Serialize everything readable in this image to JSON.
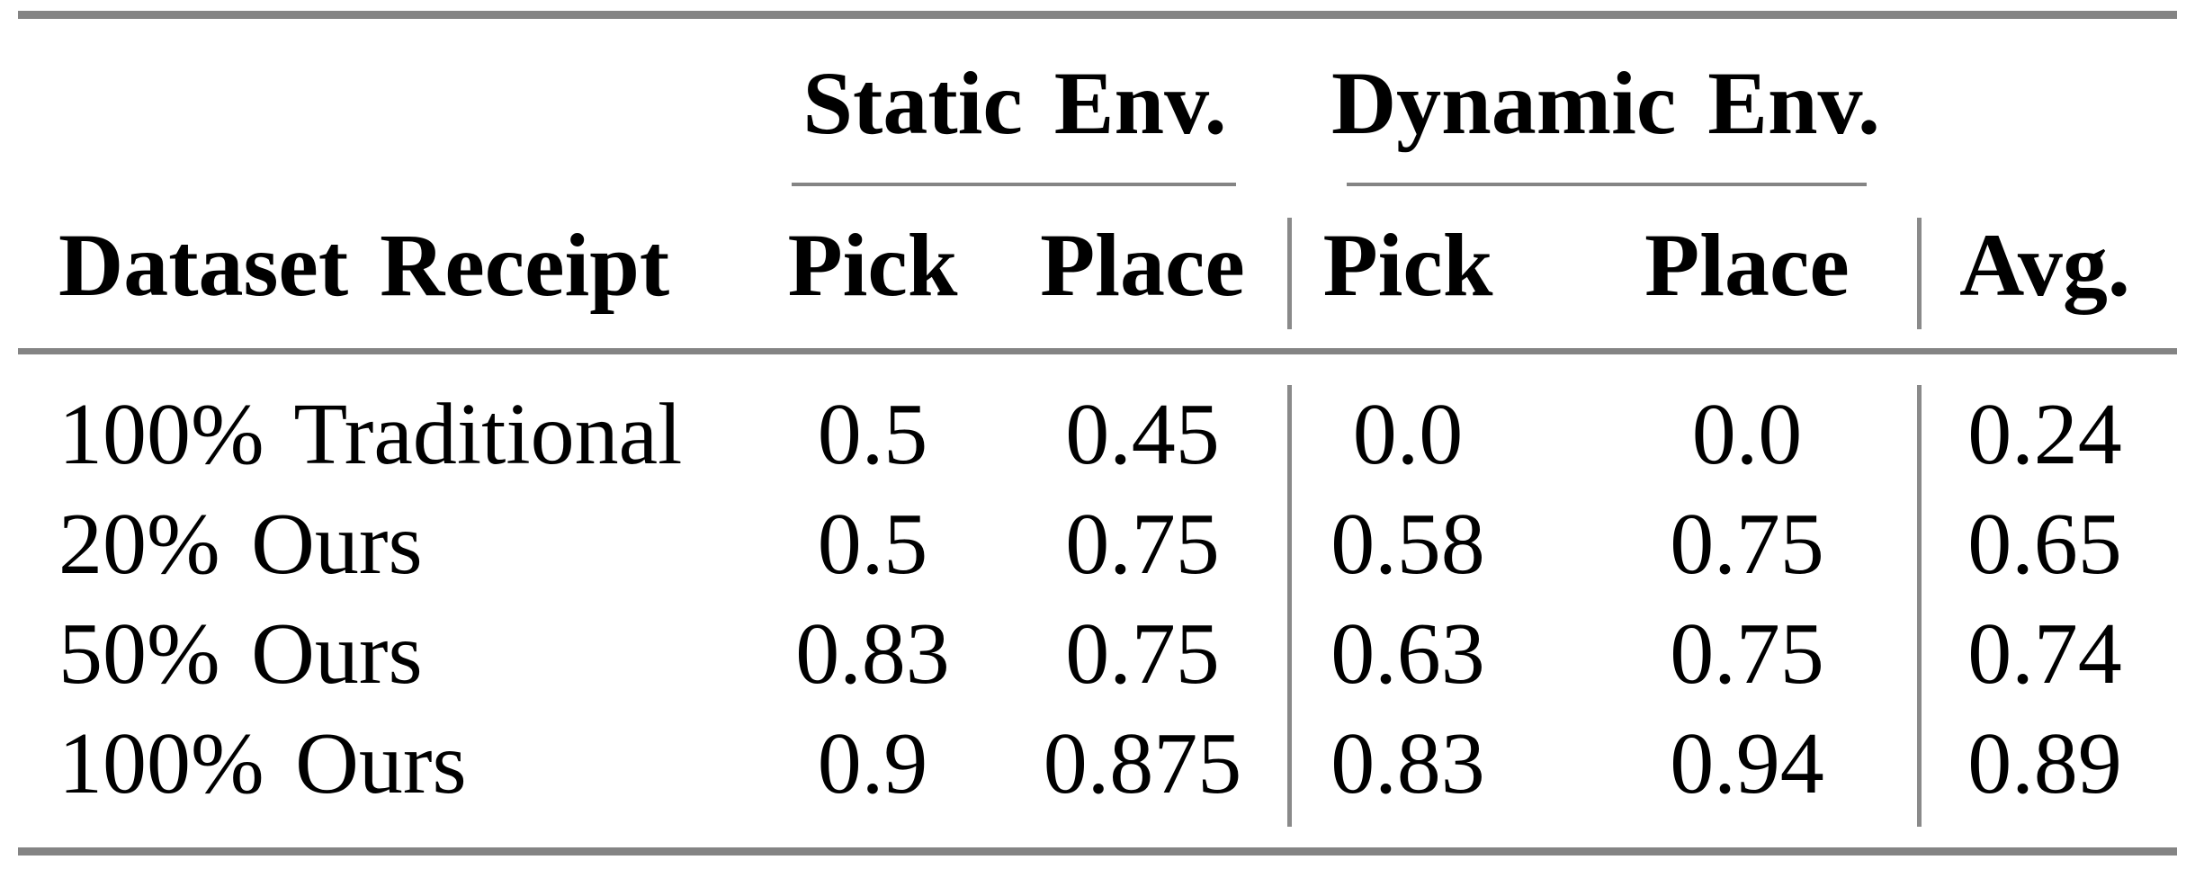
{
  "style": {
    "rule_color": "#848484",
    "text_color": "#000000",
    "background": "#ffffff"
  },
  "table": {
    "groups": [
      {
        "label": "Static Env.",
        "columns": [
          "Pick",
          "Place"
        ]
      },
      {
        "label": "Dynamic Env.",
        "columns": [
          "Pick",
          "Place"
        ]
      }
    ],
    "row_header": "Dataset Receipt",
    "avg_header": "Avg.",
    "rows": [
      {
        "label": "100% Traditional",
        "values": [
          "0.5",
          "0.45",
          "0.0",
          "0.0",
          "0.24"
        ]
      },
      {
        "label": "20% Ours",
        "values": [
          "0.5",
          "0.75",
          "0.58",
          "0.75",
          "0.65"
        ]
      },
      {
        "label": "50% Ours",
        "values": [
          "0.83",
          "0.75",
          "0.63",
          "0.75",
          "0.74"
        ]
      },
      {
        "label": "100% Ours",
        "values": [
          "0.9",
          "0.875",
          "0.83",
          "0.94",
          "0.89"
        ]
      }
    ]
  }
}
